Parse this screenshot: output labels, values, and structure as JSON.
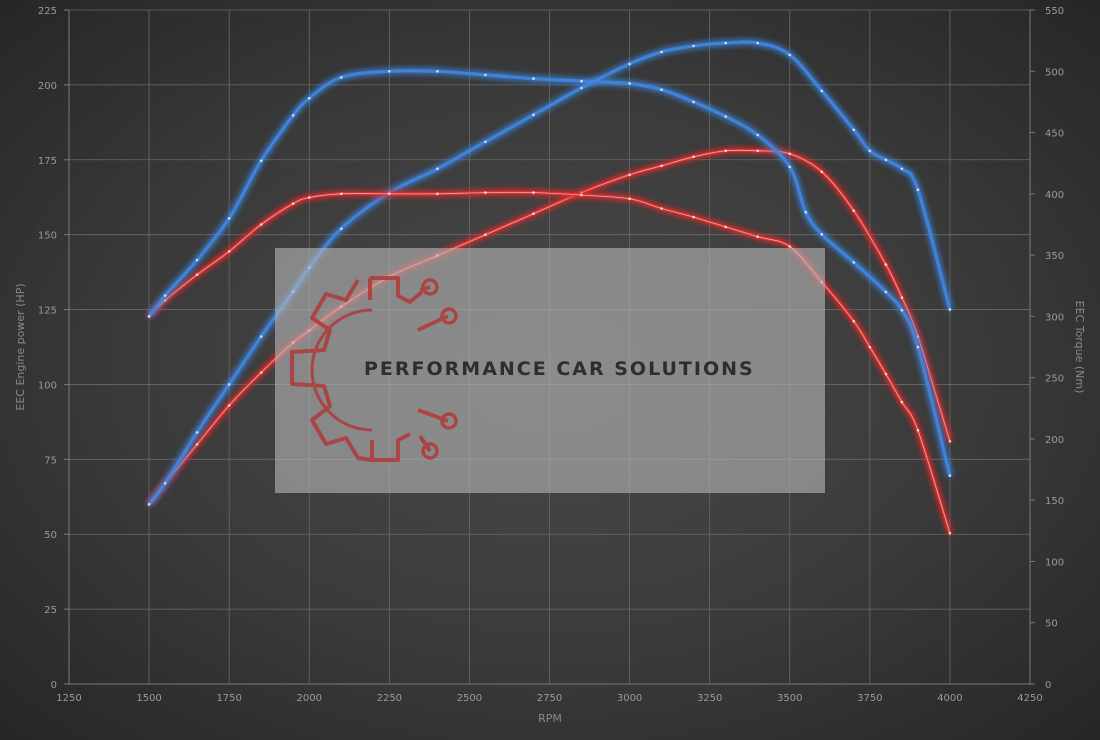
{
  "chart_data": {
    "type": "line",
    "title": "",
    "xlabel": "RPM",
    "ylabel": "EEC Engine power (HP)",
    "y2label": "EEC Torque (Nm)",
    "xlim": [
      1250,
      4250
    ],
    "ylim": [
      0,
      225
    ],
    "y2lim": [
      0,
      550
    ],
    "xticks": [
      "1250",
      "1500",
      "1750",
      "2000",
      "2250",
      "2500",
      "2750",
      "3000",
      "3250",
      "3500",
      "3750",
      "4000",
      "4250"
    ],
    "yticks": [
      "0",
      "25",
      "50",
      "75",
      "100",
      "125",
      "150",
      "175",
      "200",
      "225"
    ],
    "y2ticks": [
      "0",
      "50",
      "100",
      "150",
      "200",
      "250",
      "300",
      "350",
      "400",
      "450",
      "500",
      "550"
    ],
    "grid": true,
    "legend": "none",
    "series": [
      {
        "axis": "left",
        "color": "#e03030",
        "x": [
          1500,
          1550,
          1650,
          1750,
          1850,
          1950,
          2000,
          2100,
          2250,
          2400,
          2550,
          2700,
          2850,
          3000,
          3100,
          3200,
          3300,
          3400,
          3500,
          3600,
          3700,
          3800,
          3850,
          3900,
          4000
        ],
        "y": [
          60,
          67,
          80,
          93,
          104,
          114,
          118,
          126,
          136,
          143,
          150,
          157,
          164,
          170,
          173,
          176,
          178,
          178,
          177,
          171,
          158,
          140,
          129,
          116,
          81
        ]
      },
      {
        "axis": "left",
        "color": "#3f86e0",
        "x": [
          1500,
          1550,
          1650,
          1750,
          1850,
          1950,
          2000,
          2100,
          2250,
          2400,
          2550,
          2700,
          2850,
          3000,
          3100,
          3200,
          3300,
          3400,
          3500,
          3600,
          3700,
          3750,
          3800,
          3850,
          3900,
          4000
        ],
        "y": [
          60,
          67,
          84,
          100,
          116,
          131,
          139,
          152,
          164,
          172,
          181,
          190,
          199,
          207,
          211,
          213,
          214,
          214,
          210,
          198,
          185,
          178,
          175,
          172,
          165,
          125
        ]
      },
      {
        "axis": "right",
        "color": "#e03030",
        "x": [
          1500,
          1550,
          1650,
          1750,
          1850,
          1950,
          2000,
          2100,
          2250,
          2400,
          2550,
          2700,
          2850,
          3000,
          3100,
          3200,
          3300,
          3400,
          3500,
          3600,
          3700,
          3750,
          3800,
          3850,
          3900,
          4000
        ],
        "y": [
          300,
          313,
          334,
          353,
          375,
          392,
          397,
          400,
          400,
          400,
          401,
          401,
          399,
          396,
          388,
          381,
          373,
          365,
          357,
          328,
          296,
          275,
          253,
          230,
          207,
          123
        ]
      },
      {
        "axis": "right",
        "color": "#3f86e0",
        "x": [
          1500,
          1550,
          1650,
          1750,
          1850,
          1950,
          2000,
          2100,
          2250,
          2400,
          2550,
          2700,
          2850,
          3000,
          3100,
          3200,
          3300,
          3400,
          3500,
          3550,
          3600,
          3700,
          3800,
          3850,
          3900,
          4000
        ],
        "y": [
          300,
          317,
          346,
          380,
          427,
          464,
          478,
          495,
          500,
          500,
          497,
          494,
          492,
          490,
          485,
          475,
          463,
          448,
          422,
          385,
          367,
          344,
          320,
          305,
          275,
          170
        ]
      }
    ]
  },
  "watermark": {
    "text": "PERFORMANCE CAR SOLUTIONS",
    "logo_icon": "gear-circuit-logo-icon",
    "logo_color": "#b03a3a"
  }
}
